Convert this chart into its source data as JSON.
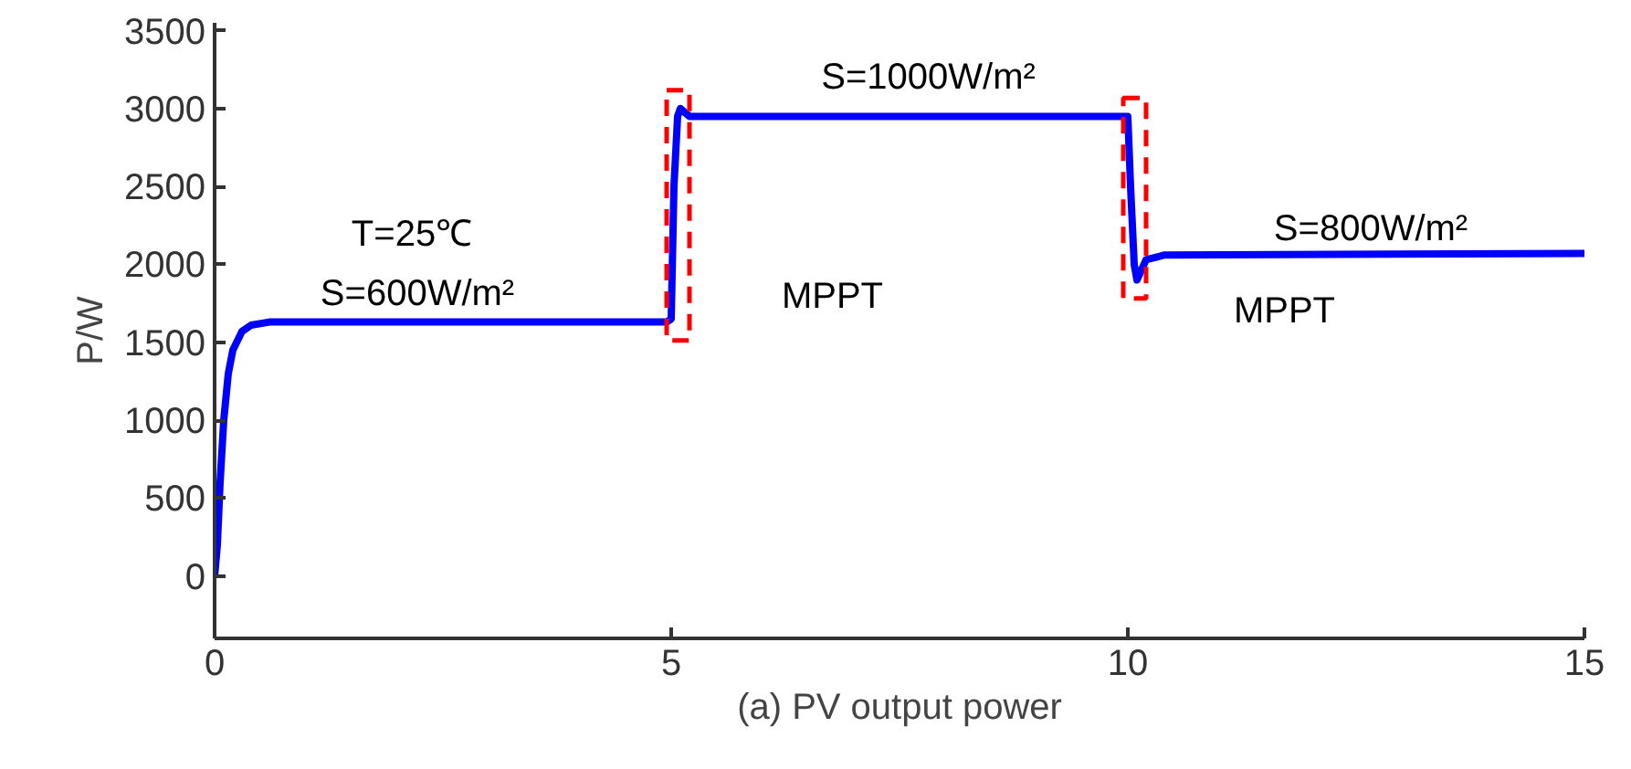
{
  "chart_data": {
    "type": "line",
    "xlabel": "(a) PV output power",
    "ylabel": "P/W",
    "xlim": [
      0,
      15
    ],
    "ylim": [
      -400,
      3550
    ],
    "xticks": [
      0,
      5,
      10,
      15
    ],
    "yticks": [
      0,
      500,
      1000,
      1500,
      2000,
      2500,
      3000,
      3500
    ],
    "grid": false,
    "marker": "none",
    "line_style": "solid",
    "series": [
      {
        "color": "#0000ff",
        "x": [
          0,
          0.03,
          0.06,
          0.1,
          0.15,
          0.2,
          0.3,
          0.4,
          0.6,
          4.95,
          5.0,
          5.03,
          5.07,
          5.1,
          5.2,
          10.0,
          10.03,
          10.07,
          10.1,
          10.2,
          10.4,
          15
        ],
        "values": [
          0,
          200,
          600,
          1000,
          1300,
          1450,
          1570,
          1610,
          1630,
          1630,
          1650,
          2500,
          2950,
          3000,
          2950,
          2950,
          2500,
          2000,
          1900,
          2030,
          2060,
          2070
        ]
      }
    ],
    "annotations": [
      "T=25℃",
      "S=600W/m²",
      "S=1000W/m²",
      "MPPT",
      "S=800W/m²",
      "MPPT"
    ]
  }
}
